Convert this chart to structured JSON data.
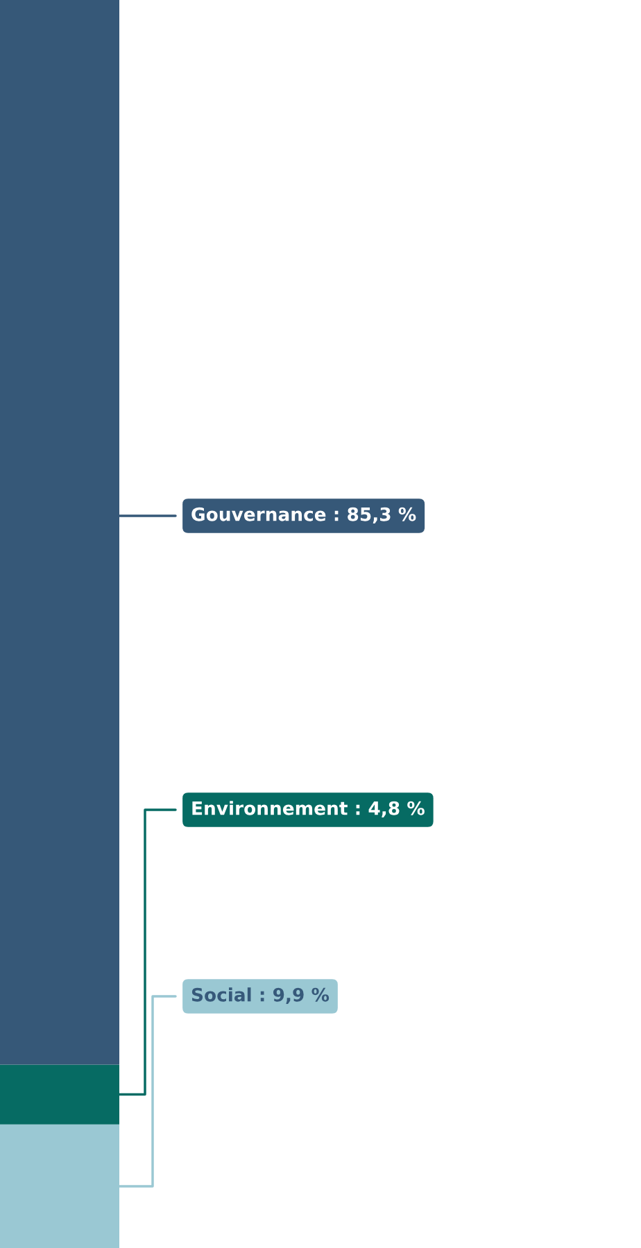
{
  "chart_data": {
    "type": "bar",
    "stacked": true,
    "categories": [
      null
    ],
    "series": [
      {
        "color": "#9ac8d3",
        "values": [
          9.9
        ],
        "value_labels": [
          "Social : 9,9 %"
        ]
      },
      {
        "color": "#066b63",
        "values": [
          4.8
        ],
        "value_labels": [
          "Environnement : 4,8 %"
        ]
      },
      {
        "color": "#365878",
        "values": [
          85.3
        ],
        "value_labels": [
          "Gouvernance : 85,3 %"
        ]
      }
    ]
  }
}
